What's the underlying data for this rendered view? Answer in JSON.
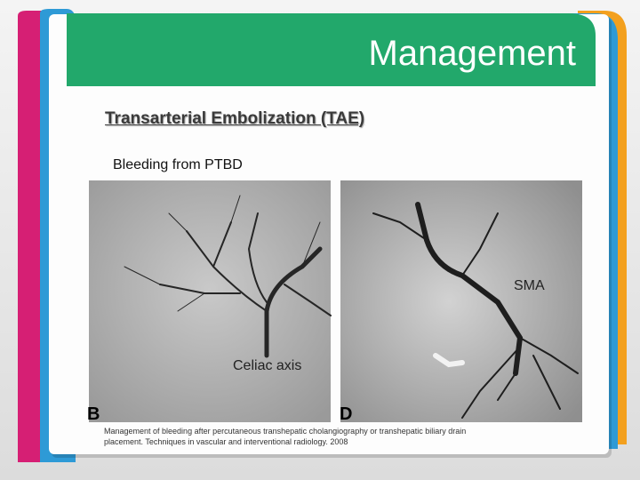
{
  "header": {
    "title": "Management"
  },
  "body": {
    "subtitle": "Transarterial Embolization (TAE)",
    "text": "Bleeding from PTBD"
  },
  "figure": {
    "labels": [
      "SMA",
      "Celiac axis"
    ],
    "panels": [
      "B",
      "D"
    ],
    "caption": [
      "Management of bleeding after percutaneous transhepatic cholangiography or transhepatic biliary drain",
      "placement. Techniques in vascular and interventional radiology. 2008"
    ]
  }
}
